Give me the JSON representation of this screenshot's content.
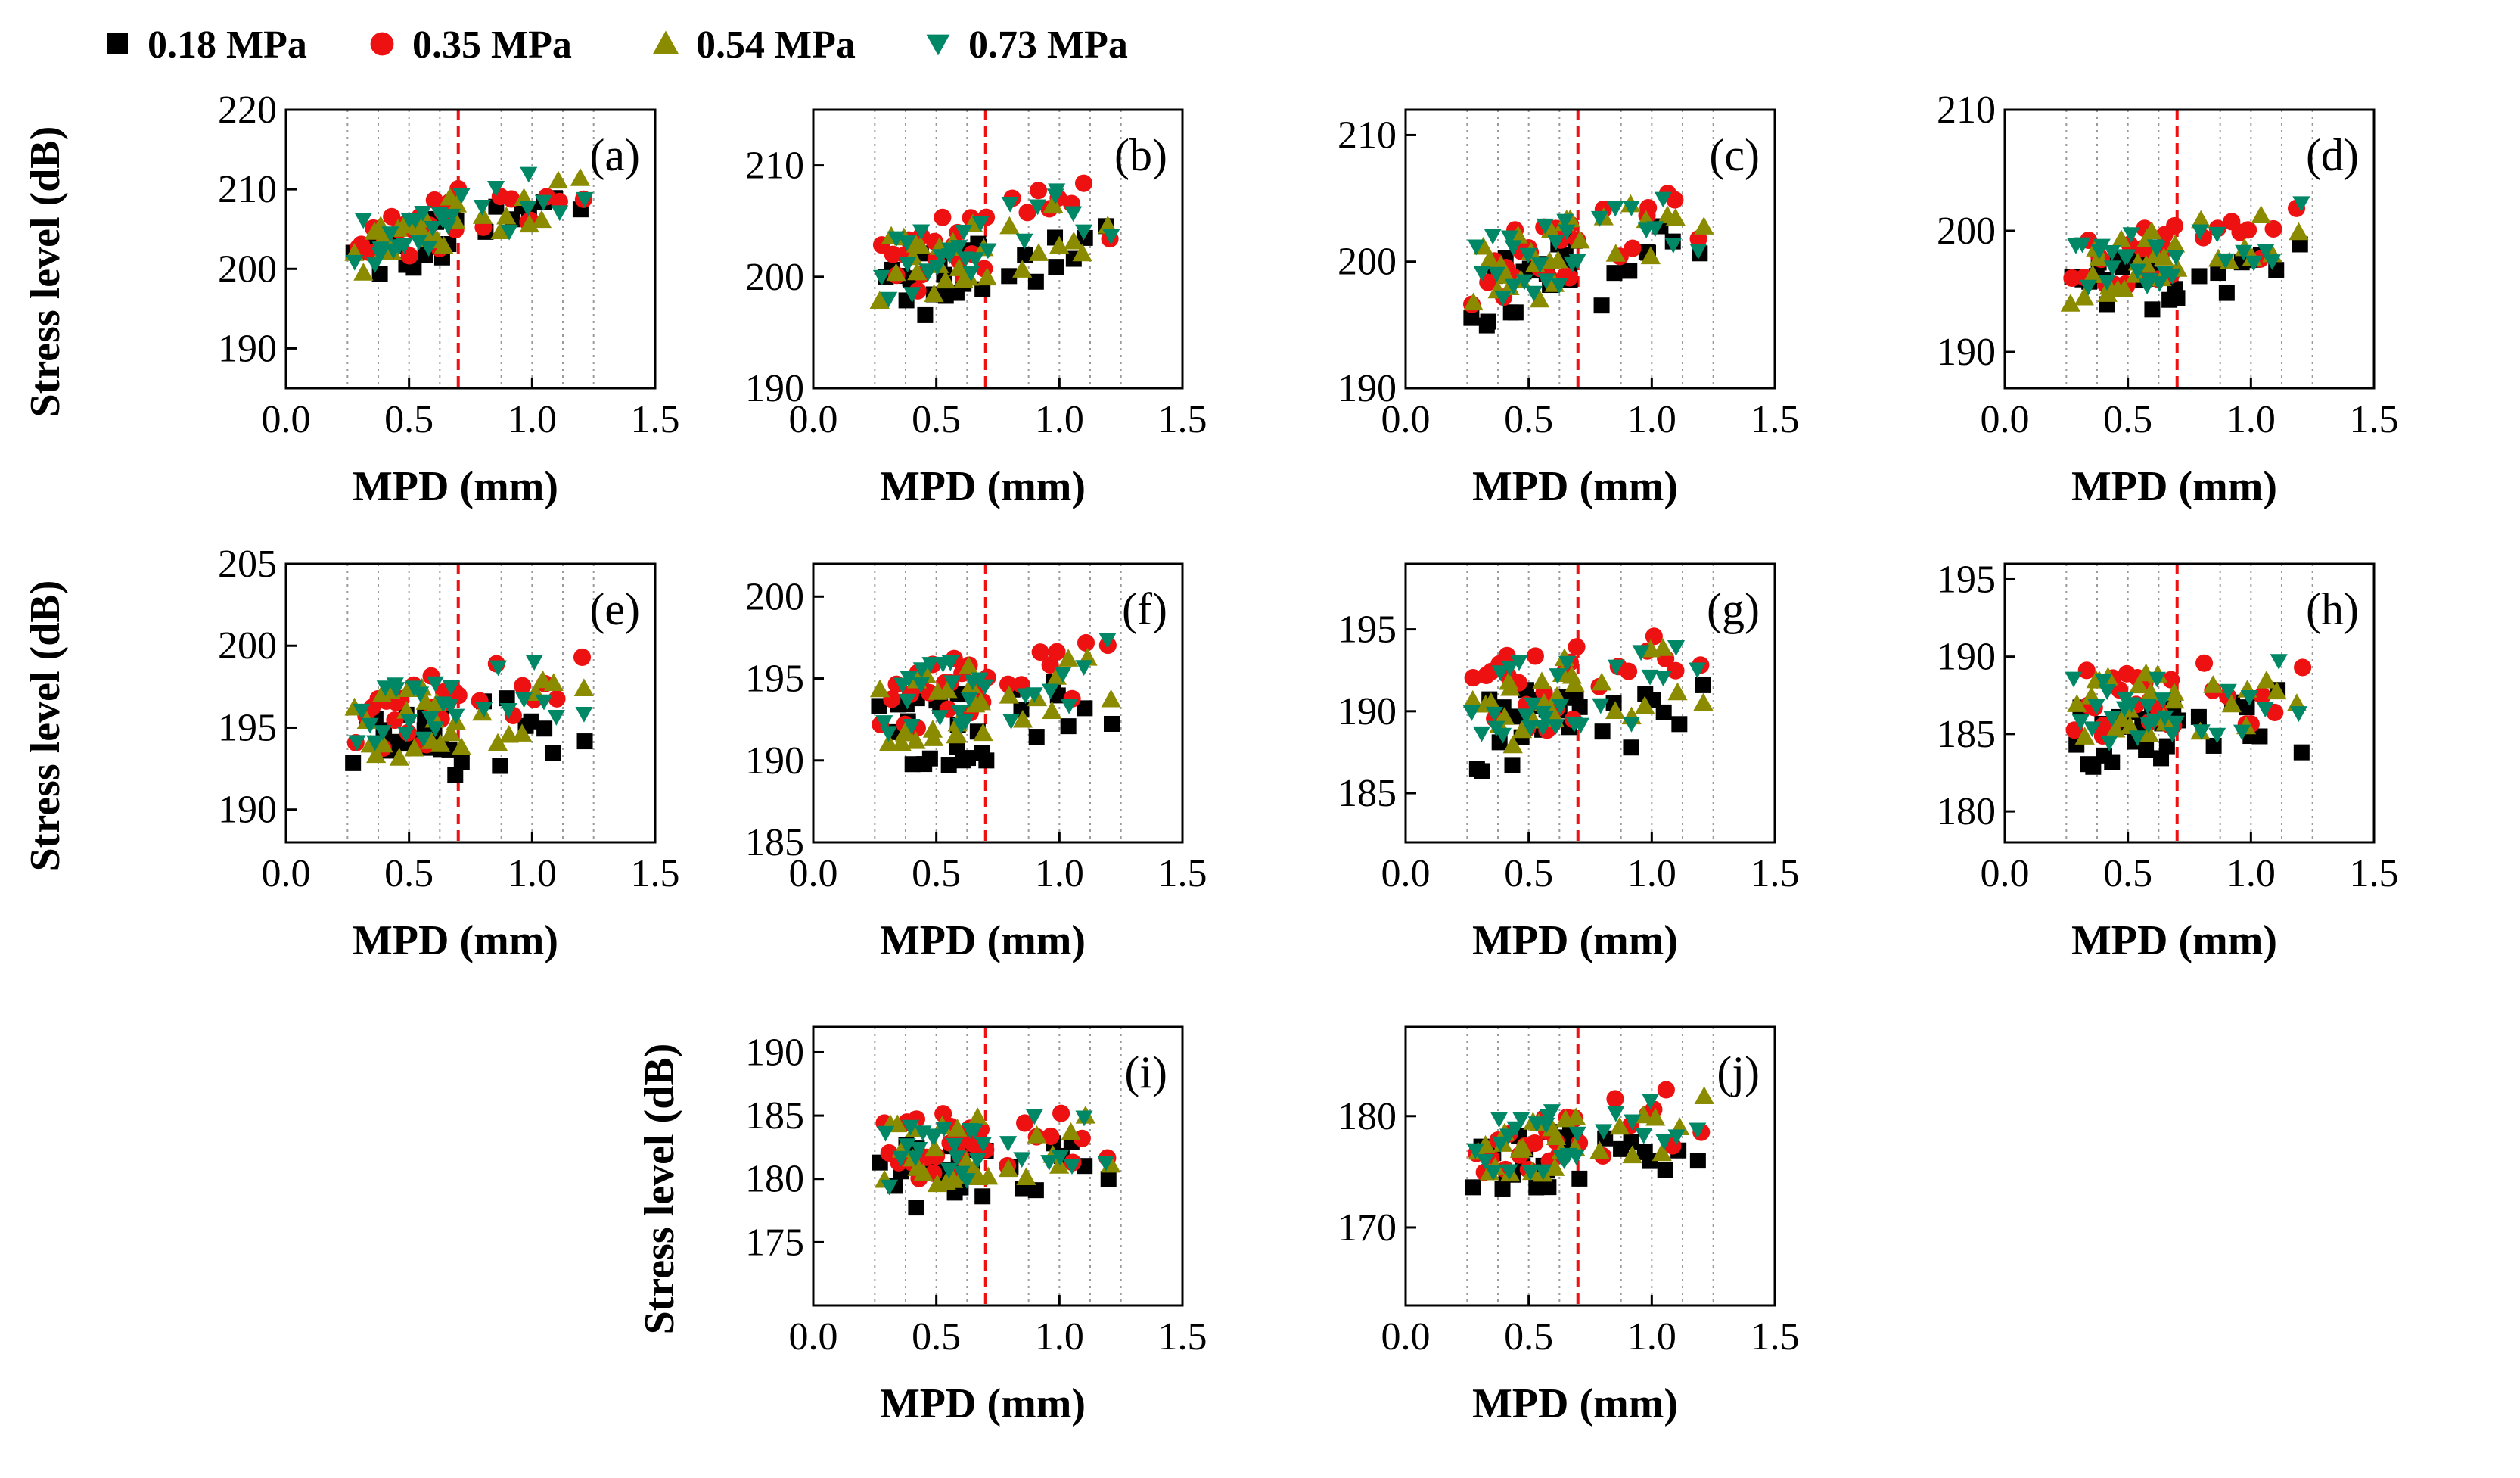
{
  "chart_data": {
    "type": "scatter",
    "legend": {
      "placement": "top-left",
      "entries": [
        {
          "name": "0.18 MPa",
          "marker": "square",
          "color": "#000000"
        },
        {
          "name": "0.35 MPa",
          "marker": "circle",
          "color": "#ee1111"
        },
        {
          "name": "0.54 MPa",
          "marker": "triangle-up",
          "color": "#8b8b00"
        },
        {
          "name": "0.73 MPa",
          "marker": "triangle-down",
          "color": "#008866"
        }
      ]
    },
    "shared": {
      "xlabel": "MPD (mm)",
      "ylabel": "Stress level (dB)",
      "ylabel_alt": "Stress  level (dB)",
      "xlim": [
        0.0,
        1.5
      ],
      "x_ticks": [
        "0.0",
        "0.5",
        "1.0",
        "1.5"
      ],
      "x_tick_values": [
        0.0,
        0.5,
        1.0,
        1.5
      ],
      "vertical_gridlines_x": [
        0.25,
        0.375,
        0.5,
        0.625,
        0.875,
        1.0,
        1.125,
        1.25
      ],
      "reference_line_x": 0.7,
      "reference_line_color": "#ee1111"
    },
    "panels": [
      {
        "label": "(a)",
        "ylim": [
          185,
          220
        ],
        "y_ticks": [
          190,
          200,
          210,
          220
        ],
        "base": 205,
        "slope": 8,
        "spread": 3.5
      },
      {
        "label": "(b)",
        "ylim": [
          190,
          215
        ],
        "y_ticks": [
          190,
          200,
          210
        ],
        "base": 202,
        "slope": 6,
        "spread": 3.2
      },
      {
        "label": "(c)",
        "ylim": [
          190,
          212
        ],
        "y_ticks": [
          190,
          200,
          210
        ],
        "base": 200,
        "slope": 5,
        "spread": 3.0
      },
      {
        "label": "(d)",
        "ylim": [
          187,
          210
        ],
        "y_ticks": [
          190,
          200,
          210
        ],
        "base": 197.5,
        "slope": 4,
        "spread": 2.5
      },
      {
        "label": "(e)",
        "ylim": [
          188,
          205
        ],
        "y_ticks": [
          190,
          195,
          200,
          205
        ],
        "base": 195.5,
        "slope": 2.5,
        "spread": 2.3
      },
      {
        "label": "(f)",
        "ylim": [
          185,
          202
        ],
        "y_ticks": [
          185,
          190,
          195,
          200
        ],
        "base": 193.5,
        "slope": 2,
        "spread": 2.3
      },
      {
        "label": "(g)",
        "ylim": [
          182,
          199
        ],
        "y_ticks": [
          185,
          190,
          195
        ],
        "base": 190.5,
        "slope": 2,
        "spread": 2.5
      },
      {
        "label": "(h)",
        "ylim": [
          178,
          196
        ],
        "y_ticks": [
          180,
          185,
          190,
          195
        ],
        "base": 186.5,
        "slope": 1.5,
        "spread": 2.4
      },
      {
        "label": "(i)",
        "ylim": [
          170,
          192
        ],
        "y_ticks": [
          175,
          180,
          185,
          190
        ],
        "base": 182,
        "slope": 1.5,
        "spread": 2.6
      },
      {
        "label": "(j)",
        "ylim": [
          163,
          188
        ],
        "y_ticks": [
          170,
          180
        ],
        "base": 177.5,
        "slope": 3,
        "spread": 2.8
      }
    ],
    "mpd_samples": [
      0.28,
      0.32,
      0.35,
      0.37,
      0.39,
      0.41,
      0.43,
      0.45,
      0.48,
      0.5,
      0.52,
      0.55,
      0.57,
      0.58,
      0.6,
      0.62,
      0.64,
      0.66,
      0.68,
      0.7,
      0.8,
      0.86,
      0.91,
      0.97,
      1.0,
      1.05,
      1.1,
      1.2
    ],
    "pressure_offsets": [
      -1.5,
      0.8,
      0.2,
      0.4
    ],
    "note": "Point values approximated from the figure: each series y = base + slope*(MPD-0.6) + pressure offset + bounded scatter."
  }
}
